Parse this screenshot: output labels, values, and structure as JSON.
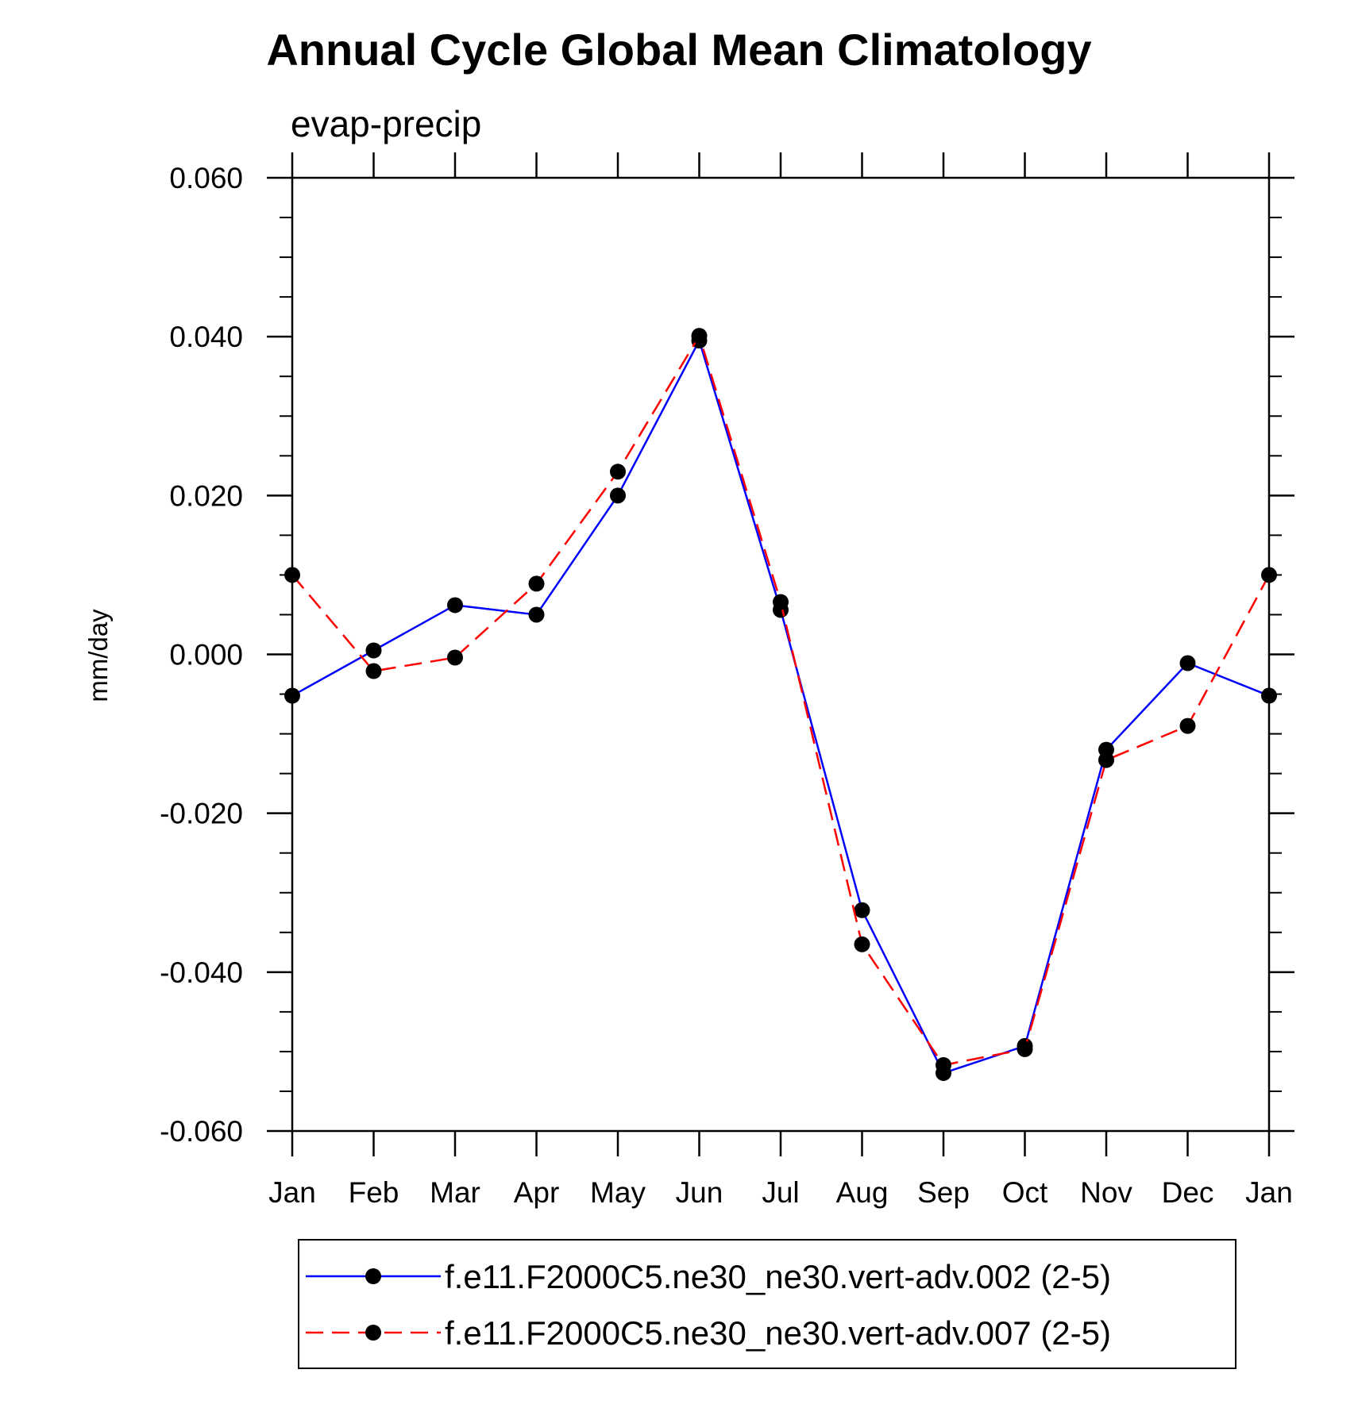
{
  "chart_data": {
    "type": "line",
    "title": "Annual Cycle Global Mean Climatology",
    "subtitle": "evap-precip",
    "xlabel": "",
    "ylabel": "mm/day",
    "categories": [
      "Jan",
      "Feb",
      "Mar",
      "Apr",
      "May",
      "Jun",
      "Jul",
      "Aug",
      "Sep",
      "Oct",
      "Nov",
      "Dec",
      "Jan"
    ],
    "ylim": [
      -0.06,
      0.06
    ],
    "yticks": [
      0.06,
      0.04,
      0.02,
      0.0,
      -0.02,
      -0.04,
      -0.06
    ],
    "ytick_labels": [
      "0.060",
      "0.040",
      "0.020",
      "0.000",
      "-0.020",
      "-0.040",
      "-0.060"
    ],
    "grid": false,
    "legend_position": "bottom",
    "series": [
      {
        "name": "f.e11.F2000C5.ne30_ne30.vert-adv.002 (2-5)",
        "color": "#0000ff",
        "dash": "solid",
        "marker_color": "#000000",
        "values": [
          -0.0052,
          0.0005,
          0.0062,
          0.005,
          0.02,
          0.0395,
          0.0056,
          -0.0322,
          -0.0527,
          -0.0493,
          -0.012,
          -0.0011,
          -0.0052
        ]
      },
      {
        "name": "f.e11.F2000C5.ne30_ne30.vert-adv.007 (2-5)",
        "color": "#ff0000",
        "dash": "dashed",
        "marker_color": "#000000",
        "values": [
          0.01,
          -0.0021,
          -0.0004,
          0.0089,
          0.023,
          0.0401,
          0.0066,
          -0.0365,
          -0.0517,
          -0.0497,
          -0.0133,
          -0.009,
          0.01
        ]
      }
    ]
  }
}
